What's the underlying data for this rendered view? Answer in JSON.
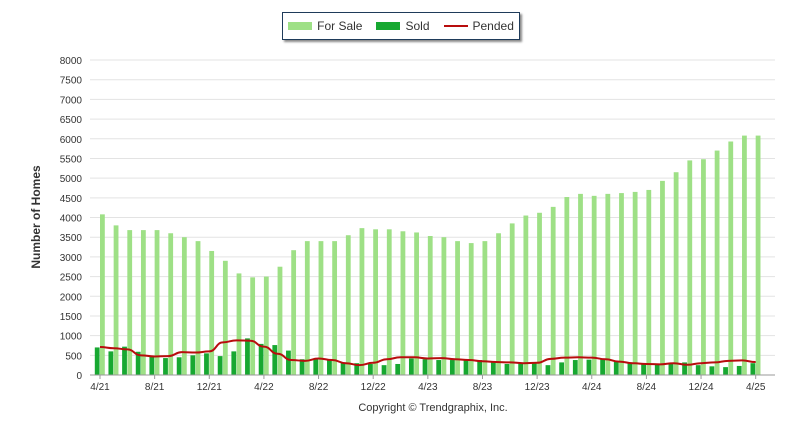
{
  "chart_data": {
    "type": "bar",
    "ylabel": "Number of Homes",
    "ylim": [
      0,
      8000
    ],
    "yticks": [
      0,
      500,
      1000,
      1500,
      2000,
      2500,
      3000,
      3500,
      4000,
      4500,
      5000,
      5500,
      6000,
      6500,
      7000,
      7500,
      8000
    ],
    "grid": true,
    "legend_position": "top-center",
    "x_tick_labels": [
      "4/21",
      "8/21",
      "12/21",
      "4/22",
      "8/22",
      "12/22",
      "4/23",
      "8/23",
      "12/23",
      "4/24",
      "8/24",
      "12/24",
      "4/25"
    ],
    "categories": [
      "4/21",
      "5/21",
      "6/21",
      "7/21",
      "8/21",
      "9/21",
      "10/21",
      "11/21",
      "12/21",
      "1/22",
      "2/22",
      "3/22",
      "4/22",
      "5/22",
      "6/22",
      "7/22",
      "8/22",
      "9/22",
      "10/22",
      "11/22",
      "12/22",
      "1/23",
      "2/23",
      "3/23",
      "4/23",
      "5/23",
      "6/23",
      "7/23",
      "8/23",
      "9/23",
      "10/23",
      "11/23",
      "12/23",
      "1/24",
      "2/24",
      "3/24",
      "4/24",
      "5/24",
      "6/24",
      "7/24",
      "8/24",
      "9/24",
      "10/24",
      "11/24",
      "12/24",
      "1/25",
      "2/25",
      "3/25",
      "4/25"
    ],
    "series": [
      {
        "name": "For Sale",
        "type": "bar",
        "color": "#9ee086",
        "values": [
          4080,
          3800,
          3680,
          3680,
          3680,
          3600,
          3500,
          3400,
          3150,
          2900,
          2580,
          2480,
          2500,
          2750,
          3170,
          3400,
          3400,
          3400,
          3550,
          3730,
          3700,
          3700,
          3650,
          3620,
          3530,
          3500,
          3400,
          3350,
          3400,
          3600,
          3850,
          4050,
          4120,
          4270,
          4520,
          4600,
          4550,
          4600,
          4620,
          4650,
          4700,
          4930,
          5150,
          5450,
          5480,
          5700,
          5930,
          6080,
          6080
        ]
      },
      {
        "name": "Sold",
        "type": "bar",
        "color": "#17a831",
        "values": [
          700,
          600,
          720,
          590,
          460,
          430,
          450,
          500,
          550,
          480,
          600,
          930,
          790,
          760,
          620,
          400,
          420,
          380,
          320,
          300,
          280,
          250,
          280,
          420,
          400,
          380,
          380,
          400,
          380,
          350,
          280,
          300,
          300,
          250,
          320,
          380,
          390,
          400,
          360,
          320,
          300,
          280,
          300,
          320,
          250,
          220,
          200,
          230,
          300
        ]
      },
      {
        "name": "Pended",
        "type": "line",
        "color": "#b80d0d",
        "values": [
          710,
          680,
          650,
          500,
          470,
          480,
          580,
          570,
          600,
          830,
          880,
          870,
          720,
          540,
          380,
          360,
          420,
          380,
          300,
          250,
          310,
          400,
          450,
          450,
          420,
          430,
          400,
          380,
          350,
          330,
          320,
          300,
          310,
          410,
          440,
          450,
          440,
          400,
          340,
          300,
          280,
          270,
          300,
          260,
          300,
          320,
          360,
          370,
          330
        ]
      }
    ]
  },
  "legend": {
    "items": [
      {
        "label": "For Sale",
        "color": "#9ee086"
      },
      {
        "label": "Sold",
        "color": "#17a831"
      },
      {
        "label": "Pended",
        "color": "#b80d0d"
      }
    ]
  },
  "footer": {
    "copyright": "Copyright © Trendgraphix, Inc."
  }
}
